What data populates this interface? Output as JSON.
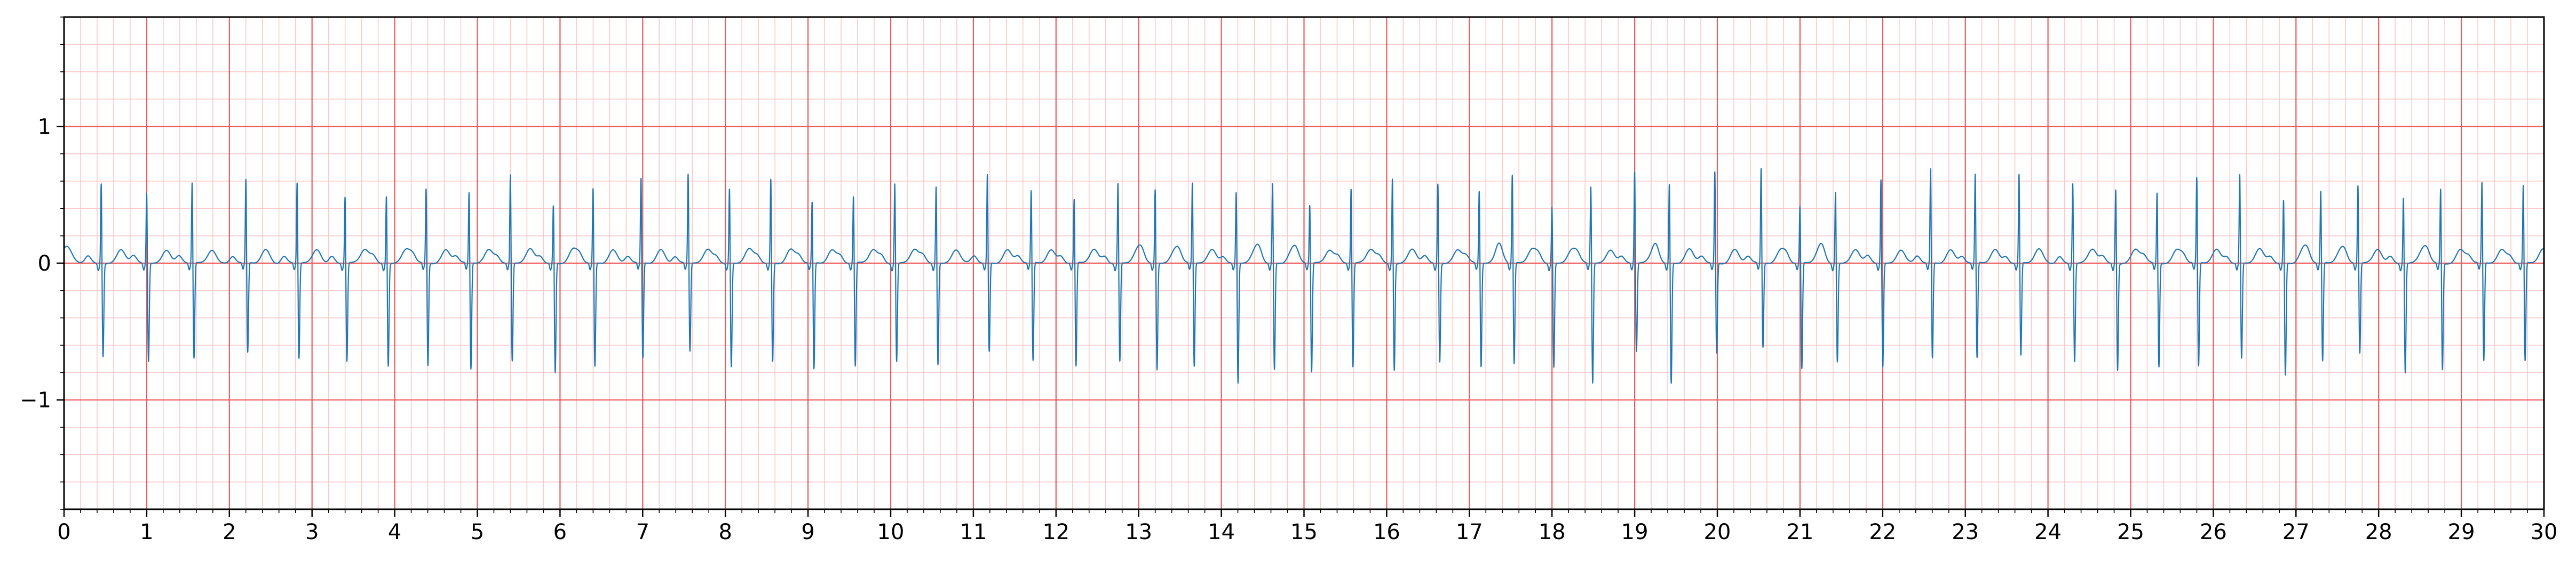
{
  "chart_data": {
    "type": "line",
    "title": "",
    "xlabel": "",
    "ylabel": "",
    "xlim": [
      0,
      30
    ],
    "ylim": [
      -1.8,
      1.8
    ],
    "x_ticks": [
      "0",
      "1",
      "2",
      "3",
      "4",
      "5",
      "6",
      "7",
      "8",
      "9",
      "10",
      "11",
      "12",
      "13",
      "14",
      "15",
      "16",
      "17",
      "18",
      "19",
      "20",
      "21",
      "22",
      "23",
      "24",
      "25",
      "26",
      "27",
      "28",
      "29",
      "30"
    ],
    "y_ticks": [
      {
        "value": -1,
        "label": "−1"
      },
      {
        "value": 0,
        "label": "0"
      },
      {
        "value": 1,
        "label": "1"
      }
    ],
    "grid": true,
    "minor_grid_step": 0.2,
    "major_grid_step_x": 1,
    "major_grid_step_y": 1,
    "series": [
      {
        "name": "",
        "color": "#1f77b4",
        "beat_times": [
          0.45,
          1.0,
          1.55,
          2.2,
          2.82,
          3.4,
          3.9,
          4.38,
          4.9,
          5.4,
          5.92,
          6.4,
          6.98,
          7.55,
          8.05,
          8.55,
          9.05,
          9.55,
          10.05,
          10.55,
          11.17,
          11.7,
          12.22,
          12.75,
          13.2,
          13.65,
          14.18,
          14.62,
          15.07,
          15.57,
          16.07,
          16.62,
          17.12,
          17.52,
          18.0,
          18.47,
          19.0,
          19.42,
          19.97,
          20.53,
          21.0,
          21.43,
          21.98,
          22.58,
          23.12,
          23.65,
          24.3,
          24.82,
          25.32,
          25.8,
          26.32,
          26.85,
          27.3,
          27.75,
          28.3,
          28.75,
          29.25,
          29.75
        ],
        "r_peaks": [
          0.62,
          0.55,
          0.62,
          0.64,
          0.62,
          0.52,
          0.53,
          0.58,
          0.55,
          0.68,
          0.46,
          0.58,
          0.65,
          0.68,
          0.58,
          0.65,
          0.48,
          0.52,
          0.62,
          0.6,
          0.68,
          0.56,
          0.5,
          0.62,
          0.58,
          0.62,
          0.56,
          0.62,
          0.46,
          0.58,
          0.66,
          0.62,
          0.56,
          0.68,
          0.45,
          0.6,
          0.7,
          0.62,
          0.7,
          0.72,
          0.45,
          0.56,
          0.65,
          0.72,
          0.68,
          0.68,
          0.62,
          0.58,
          0.55,
          0.66,
          0.68,
          0.5,
          0.56,
          0.6,
          0.52,
          0.58,
          0.62,
          0.6
        ],
        "s_troughs": [
          -0.68,
          -0.72,
          -0.7,
          -0.66,
          -0.7,
          -0.72,
          -0.75,
          -0.75,
          -0.78,
          -0.72,
          -0.8,
          -0.76,
          -0.7,
          -0.65,
          -0.76,
          -0.72,
          -0.78,
          -0.76,
          -0.72,
          -0.74,
          -0.65,
          -0.72,
          -0.76,
          -0.72,
          -0.78,
          -0.76,
          -0.88,
          -0.78,
          -0.8,
          -0.76,
          -0.78,
          -0.72,
          -0.76,
          -0.74,
          -0.76,
          -0.88,
          -0.65,
          -0.88,
          -0.66,
          -0.62,
          -0.78,
          -0.72,
          -0.76,
          -0.7,
          -0.7,
          -0.68,
          -0.72,
          -0.78,
          -0.76,
          -0.76,
          -0.7,
          -0.82,
          -0.72,
          -0.66,
          -0.8,
          -0.78,
          -0.72,
          -0.72
        ]
      }
    ]
  }
}
